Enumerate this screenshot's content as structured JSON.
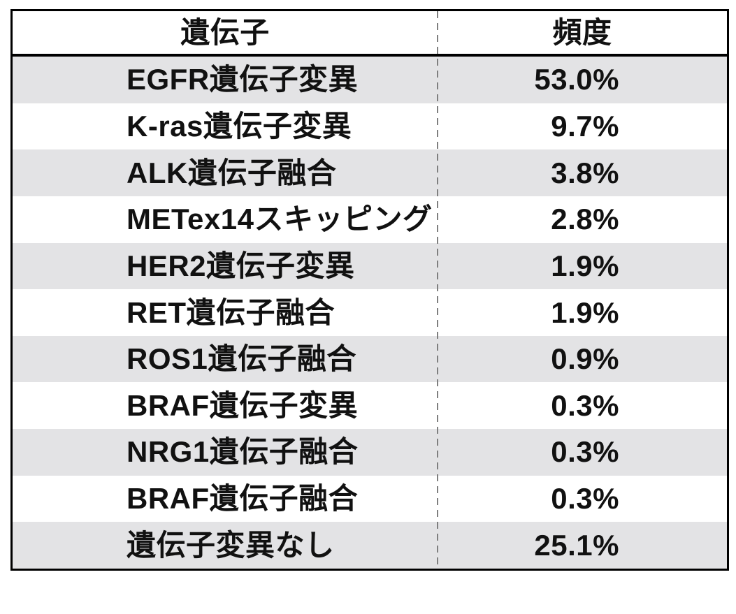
{
  "table": {
    "headers": {
      "gene": "遺伝子",
      "frequency": "頻度"
    },
    "rows": [
      {
        "gene": "EGFR遺伝子変異",
        "frequency": "53.0%"
      },
      {
        "gene": "K-ras遺伝子変異",
        "frequency": "9.7%"
      },
      {
        "gene": "ALK遺伝子融合",
        "frequency": "3.8%"
      },
      {
        "gene": "METex14スキッピング",
        "frequency": "2.8%"
      },
      {
        "gene": "HER2遺伝子変異",
        "frequency": "1.9%"
      },
      {
        "gene": "RET遺伝子融合",
        "frequency": "1.9%"
      },
      {
        "gene": "ROS1遺伝子融合",
        "frequency": "0.9%"
      },
      {
        "gene": "BRAF遺伝子変異",
        "frequency": "0.3%"
      },
      {
        "gene": "NRG1遺伝子融合",
        "frequency": "0.3%"
      },
      {
        "gene": "BRAF遺伝子融合",
        "frequency": "0.3%"
      },
      {
        "gene": "遺伝子変異なし",
        "frequency": "25.1%"
      }
    ]
  },
  "colors": {
    "stripe_row_background": "#e3e3e5",
    "table_border": "#000000",
    "column_divider": "#7f7f7f",
    "text": "#111111"
  },
  "chart_data": {
    "type": "table",
    "title": "",
    "columns": [
      "遺伝子",
      "頻度"
    ],
    "rows": [
      [
        "EGFR遺伝子変異",
        "53.0%"
      ],
      [
        "K-ras遺伝子変異",
        "9.7%"
      ],
      [
        "ALK遺伝子融合",
        "3.8%"
      ],
      [
        "METex14スキッピング",
        "2.8%"
      ],
      [
        "HER2遺伝子変異",
        "1.9%"
      ],
      [
        "RET遺伝子融合",
        "1.9%"
      ],
      [
        "ROS1遺伝子融合",
        "0.9%"
      ],
      [
        "BRAF遺伝子変異",
        "0.3%"
      ],
      [
        "NRG1遺伝子融合",
        "0.3%"
      ],
      [
        "BRAF遺伝子融合",
        "0.3%"
      ],
      [
        "遺伝子変異なし",
        "25.1%"
      ]
    ],
    "values_percent": [
      53.0,
      9.7,
      3.8,
      2.8,
      1.9,
      1.9,
      0.9,
      0.3,
      0.3,
      0.3,
      25.1
    ],
    "layout": {
      "striped_rows": "odd data rows (1st, 3rd, 5th, ...) shaded gray",
      "column_divider": "vertical dashed gray line between columns",
      "gene_column_alignment": "left",
      "frequency_column_alignment": "right",
      "header_alignment": "center"
    }
  }
}
